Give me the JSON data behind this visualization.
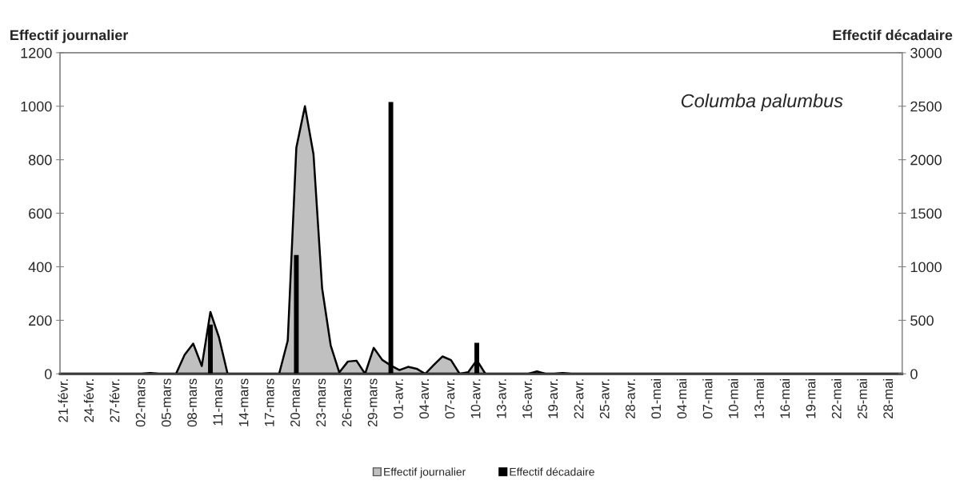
{
  "chart_data": {
    "type": "area",
    "categories": [
      "21-févr.",
      null,
      null,
      "24-févr.",
      null,
      null,
      "27-févr.",
      null,
      null,
      "02-mars",
      null,
      null,
      "05-mars",
      null,
      null,
      "08-mars",
      null,
      null,
      "11-mars",
      null,
      null,
      "14-mars",
      null,
      null,
      "17-mars",
      null,
      null,
      "20-mars",
      null,
      null,
      "23-mars",
      null,
      null,
      "26-mars",
      null,
      null,
      "29-mars",
      null,
      null,
      "01-avr.",
      null,
      null,
      "04-avr.",
      null,
      null,
      "07-avr.",
      null,
      null,
      "10-avr.",
      null,
      null,
      "13-avr.",
      null,
      null,
      "16-avr.",
      null,
      null,
      "19-avr.",
      null,
      null,
      "22-avr.",
      null,
      null,
      "25-avr.",
      null,
      null,
      "28-avr.",
      null,
      null,
      "01-mai",
      null,
      null,
      "04-mai",
      null,
      null,
      "07-mai",
      null,
      null,
      "10-mai",
      null,
      null,
      "13-mai",
      null,
      null,
      "16-mai",
      null,
      null,
      "19-mai",
      null,
      null,
      "22-mai",
      null,
      null,
      "25-mai",
      null,
      null,
      "28-mai",
      null
    ],
    "series": [
      {
        "name": "Effectif journalier",
        "color": "#c0c0c0",
        "values": [
          0,
          0,
          0,
          0,
          0,
          0,
          0,
          0,
          0,
          0,
          3,
          0,
          0,
          0,
          71,
          113,
          29,
          231,
          136,
          0,
          0,
          0,
          0,
          0,
          0,
          0,
          124,
          845,
          1000,
          820,
          320,
          106,
          5,
          46,
          49,
          0,
          97,
          52,
          31,
          14,
          26,
          19,
          0,
          33,
          65,
          51,
          0,
          6,
          51,
          0,
          0,
          0,
          0,
          0,
          0,
          9,
          0,
          0,
          3,
          0,
          0,
          0,
          0,
          0,
          0,
          0,
          0,
          0,
          0,
          0,
          0,
          0,
          0,
          0,
          0,
          0,
          0,
          0,
          0,
          0,
          0,
          0,
          0,
          0,
          0,
          0,
          0,
          0,
          0,
          0,
          0,
          0,
          0,
          0,
          0,
          0,
          0,
          0
        ]
      },
      {
        "name": "Effectif décadaire",
        "type": "bar",
        "axis": "y2",
        "color": "#000000",
        "values": [
          null,
          null,
          null,
          null,
          null,
          null,
          null,
          null,
          null,
          null,
          null,
          null,
          null,
          null,
          null,
          null,
          null,
          460,
          null,
          null,
          null,
          null,
          null,
          null,
          null,
          null,
          null,
          1110,
          null,
          null,
          null,
          null,
          null,
          null,
          null,
          null,
          null,
          null,
          2540,
          null,
          null,
          null,
          null,
          null,
          null,
          null,
          null,
          null,
          290,
          null,
          null,
          null,
          null,
          null,
          null,
          null,
          null,
          null,
          null,
          null,
          null,
          null,
          null,
          null,
          null,
          null,
          null,
          null,
          null,
          null,
          null,
          null,
          null,
          null,
          null,
          null,
          null,
          null,
          null,
          null,
          null,
          null,
          null,
          null,
          null,
          null,
          null,
          null,
          null,
          null,
          null,
          null,
          null,
          null,
          null,
          null,
          null,
          null
        ]
      }
    ],
    "ylabel": "Effectif journalier",
    "y2label": "Effectif décadaire",
    "ylim": [
      0,
      1200
    ],
    "yticks": [
      0,
      200,
      400,
      600,
      800,
      1000,
      1200
    ],
    "y2lim": [
      0,
      3000
    ],
    "y2ticks": [
      0,
      500,
      1000,
      1500,
      2000,
      2500,
      3000
    ],
    "annotations": [
      "Columba palumbus"
    ],
    "legend": "bottom",
    "grid": false
  }
}
